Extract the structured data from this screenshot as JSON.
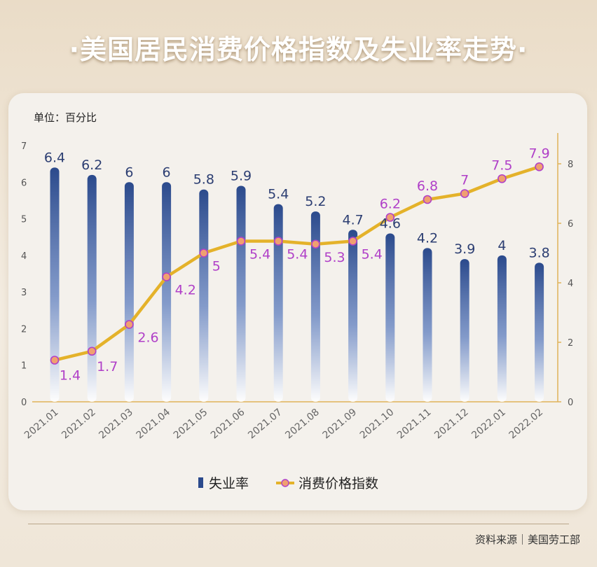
{
  "title": "·美国居民消费价格指数及失业率走势·",
  "unit_label": "单位：百分比",
  "source": "资料来源｜美国劳工部",
  "colors": {
    "bar": "#2b4a8c",
    "line": "#e4b22a",
    "marker": "#f0a070",
    "unemployment_label": "#2c3e72",
    "cpi_label": "#b040c8",
    "axis": "#e0b35a",
    "tick": "#555555"
  },
  "chart_data": {
    "type": "bar",
    "categories": [
      "2021.01",
      "2021.02",
      "2021.03",
      "2021.04",
      "2021.05",
      "2021.06",
      "2021.07",
      "2021.08",
      "2021.09",
      "2021.10",
      "2021.11",
      "2021.12",
      "2022.01",
      "2022.02"
    ],
    "series": [
      {
        "name": "失业率",
        "type": "bar",
        "axis": "left",
        "values": [
          6.4,
          6.2,
          6,
          6,
          5.8,
          5.9,
          5.4,
          5.2,
          4.7,
          4.6,
          4.2,
          3.9,
          4,
          3.8
        ],
        "labels": [
          "6.4",
          "6.2",
          "6",
          "6",
          "5.8",
          "5.9",
          "5.4",
          "5.2",
          "4.7",
          "4.6",
          "4.2",
          "3.9",
          "4",
          "3.8"
        ]
      },
      {
        "name": "消费价格指数",
        "type": "line",
        "axis": "right",
        "values": [
          1.4,
          1.7,
          2.6,
          4.2,
          5,
          5.4,
          5.4,
          5.3,
          5.4,
          6.2,
          6.8,
          7,
          7.5,
          7.9
        ],
        "labels": [
          "1.4",
          "1.7",
          "2.6",
          "4.2",
          "5",
          "5.4",
          "5.4",
          "5.3",
          "5.4",
          "6.2",
          "6.8",
          "7",
          "7.5",
          "7.9"
        ]
      }
    ],
    "y_left": {
      "range": [
        0,
        7
      ],
      "ticks": [
        "0",
        "1",
        "2",
        "3",
        "4",
        "5",
        "6",
        "7"
      ]
    },
    "y_right": {
      "range": [
        0,
        8.6
      ],
      "ticks": [
        "0",
        "2",
        "4",
        "6",
        "8"
      ]
    },
    "legend": {
      "placement": "bottom-center",
      "items": [
        "失业率",
        "消费价格指数"
      ]
    },
    "grid": false
  }
}
